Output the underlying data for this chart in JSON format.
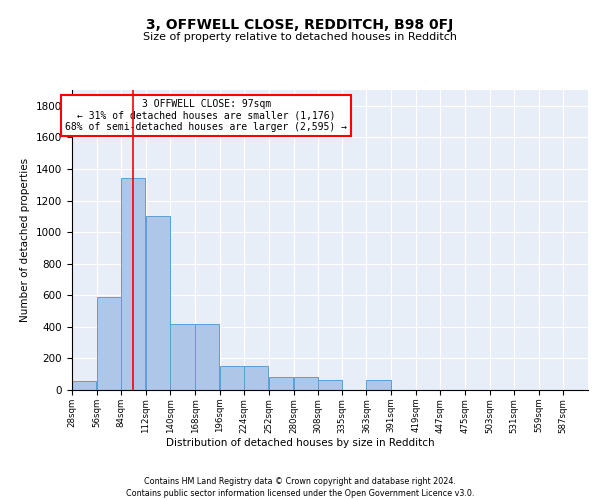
{
  "title": "3, OFFWELL CLOSE, REDDITCH, B98 0FJ",
  "subtitle": "Size of property relative to detached houses in Redditch",
  "xlabel": "Distribution of detached houses by size in Redditch",
  "ylabel": "Number of detached properties",
  "bin_edges": [
    28,
    56,
    84,
    112,
    140,
    168,
    196,
    224,
    252,
    280,
    308,
    335,
    363,
    391,
    419,
    447,
    475,
    503,
    531,
    559,
    587
  ],
  "bin_labels": [
    "28sqm",
    "56sqm",
    "84sqm",
    "112sqm",
    "140sqm",
    "168sqm",
    "196sqm",
    "224sqm",
    "252sqm",
    "280sqm",
    "308sqm",
    "335sqm",
    "363sqm",
    "391sqm",
    "419sqm",
    "447sqm",
    "475sqm",
    "503sqm",
    "531sqm",
    "559sqm",
    "587sqm"
  ],
  "counts": [
    60,
    590,
    1340,
    1100,
    420,
    420,
    155,
    155,
    80,
    80,
    65,
    0,
    65,
    0,
    0,
    0,
    0,
    0,
    0,
    0
  ],
  "bar_color": "#aec6e8",
  "bar_edge_color": "#5a9fd4",
  "vline_x": 97,
  "vline_color": "red",
  "annotation_text": "3 OFFWELL CLOSE: 97sqm\n← 31% of detached houses are smaller (1,176)\n68% of semi-detached houses are larger (2,595) →",
  "annotation_box_color": "white",
  "annotation_box_edge_color": "red",
  "ylim": [
    0,
    1900
  ],
  "yticks": [
    0,
    200,
    400,
    600,
    800,
    1000,
    1200,
    1400,
    1600,
    1800
  ],
  "background_color": "#e8eef8",
  "footer_line1": "Contains HM Land Registry data © Crown copyright and database right 2024.",
  "footer_line2": "Contains public sector information licensed under the Open Government Licence v3.0."
}
